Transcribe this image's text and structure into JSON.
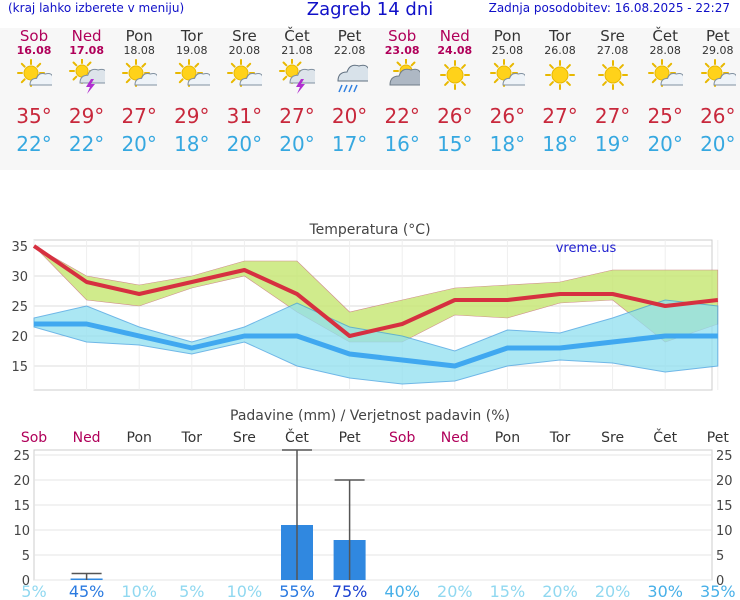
{
  "header": {
    "left": "(kraj lahko izberete v meniju)",
    "title": "Zagreb 14 dni",
    "right": "Zadnja posodobitev: 16.08.2025 - 22:27"
  },
  "days": [
    {
      "name": "Sob",
      "date": "16.08",
      "weekend": true,
      "icon": "sun-cloud-icon",
      "tmax": "35°",
      "tmin": "22°"
    },
    {
      "name": "Ned",
      "date": "17.08",
      "weekend": true,
      "icon": "thunderstorm-icon",
      "tmax": "29°",
      "tmin": "22°"
    },
    {
      "name": "Pon",
      "date": "18.08",
      "weekend": false,
      "icon": "sun-cloud-icon",
      "tmax": "27°",
      "tmin": "20°"
    },
    {
      "name": "Tor",
      "date": "19.08",
      "weekend": false,
      "icon": "sun-cloud-icon",
      "tmax": "29°",
      "tmin": "18°"
    },
    {
      "name": "Sre",
      "date": "20.08",
      "weekend": false,
      "icon": "sun-cloud-icon",
      "tmax": "31°",
      "tmin": "20°"
    },
    {
      "name": "Čet",
      "date": "21.08",
      "weekend": false,
      "icon": "thunderstorm-icon",
      "tmax": "27°",
      "tmin": "20°"
    },
    {
      "name": "Pet",
      "date": "22.08",
      "weekend": false,
      "icon": "rain-icon",
      "tmax": "20°",
      "tmin": "17°"
    },
    {
      "name": "Sob",
      "date": "23.08",
      "weekend": true,
      "icon": "cloudy-sun-icon",
      "tmax": "22°",
      "tmin": "16°"
    },
    {
      "name": "Ned",
      "date": "24.08",
      "weekend": true,
      "icon": "sun-icon",
      "tmax": "26°",
      "tmin": "15°"
    },
    {
      "name": "Pon",
      "date": "25.08",
      "weekend": false,
      "icon": "sun-cloud-icon",
      "tmax": "26°",
      "tmin": "18°"
    },
    {
      "name": "Tor",
      "date": "26.08",
      "weekend": false,
      "icon": "sun-icon",
      "tmax": "27°",
      "tmin": "18°"
    },
    {
      "name": "Sre",
      "date": "27.08",
      "weekend": false,
      "icon": "sun-icon",
      "tmax": "27°",
      "tmin": "19°"
    },
    {
      "name": "Čet",
      "date": "28.08",
      "weekend": false,
      "icon": "sun-cloud-icon",
      "tmax": "25°",
      "tmin": "20°"
    },
    {
      "name": "Pet",
      "date": "29.08",
      "weekend": false,
      "icon": "sun-cloud-icon",
      "tmax": "26°",
      "tmin": "20°"
    }
  ],
  "colors": {
    "max_line": "#d63040",
    "min_line": "#40a8f0",
    "max_band": "#c8e878",
    "min_band": "#90e0f0",
    "overlap": "#80d080",
    "bar": "#3088e0",
    "weekend": "#b0005a",
    "weekday": "#333333"
  },
  "chart_data": [
    {
      "type": "line",
      "title": "Temperatura (°C)",
      "watermark": "vreme.us",
      "categories": [
        "Sob",
        "Ned",
        "Pon",
        "Tor",
        "Sre",
        "Čet",
        "Pet",
        "Sob",
        "Ned",
        "Pon",
        "Tor",
        "Sre",
        "Čet",
        "Pet"
      ],
      "ylim": [
        11,
        36
      ],
      "yticks": [
        15,
        20,
        25,
        30,
        35
      ],
      "grid": true,
      "series": [
        {
          "values": [
            35,
            29,
            27,
            29,
            31,
            27,
            20,
            22,
            26,
            26,
            27,
            27,
            25,
            26
          ]
        },
        {
          "values": [
            22,
            22,
            20,
            18,
            20,
            20,
            17,
            16,
            15,
            18,
            18,
            19,
            20,
            20
          ]
        }
      ],
      "bands": [
        {
          "upper": [
            35,
            30,
            28.5,
            30,
            32.5,
            32.5,
            24,
            26,
            28,
            28.5,
            29,
            31,
            31,
            31
          ],
          "lower": [
            35,
            26,
            25,
            28,
            30,
            24,
            19,
            19,
            23.5,
            23,
            25.5,
            26,
            19,
            22
          ]
        },
        {
          "upper": [
            23,
            25,
            21.5,
            19,
            21.5,
            25.5,
            21.5,
            20,
            17.5,
            21,
            20.5,
            23,
            26,
            25
          ],
          "lower": [
            21.5,
            19,
            18.5,
            17,
            19,
            15,
            13,
            12,
            12.5,
            15,
            16,
            15.5,
            14,
            15
          ]
        }
      ]
    },
    {
      "type": "bar",
      "title": "Padavine (mm) / Verjetnost padavin (%)",
      "categories": [
        "Sob",
        "Ned",
        "Pon",
        "Tor",
        "Sre",
        "Čet",
        "Pet",
        "Sob",
        "Ned",
        "Pon",
        "Tor",
        "Sre",
        "Čet",
        "Pet"
      ],
      "ylim": [
        0,
        26
      ],
      "yticks": [
        0,
        5,
        10,
        15,
        20,
        25
      ],
      "values": [
        0,
        0.3,
        0,
        0,
        0,
        11,
        8,
        0,
        0,
        0,
        0,
        0,
        0,
        0
      ],
      "error_high": [
        0,
        1.3,
        0,
        0,
        0,
        26,
        20,
        0,
        0,
        0,
        0,
        0,
        0,
        0
      ],
      "error_low": [
        0,
        0,
        0,
        0,
        0,
        0,
        0,
        0,
        0,
        0,
        0,
        0,
        0,
        0
      ],
      "probability": [
        "5%",
        "45%",
        "10%",
        "5%",
        "10%",
        "55%",
        "75%",
        "40%",
        "20%",
        "15%",
        "20%",
        "20%",
        "30%",
        "35%"
      ],
      "probability_colors": [
        "#90d8f0",
        "#2a7ae0",
        "#90d8f0",
        "#90d8f0",
        "#90d8f0",
        "#2a7ae0",
        "#1a40d0",
        "#48b0e8",
        "#90d8f0",
        "#90d8f0",
        "#90d8f0",
        "#90d8f0",
        "#48b0e8",
        "#48b0e8"
      ]
    }
  ]
}
